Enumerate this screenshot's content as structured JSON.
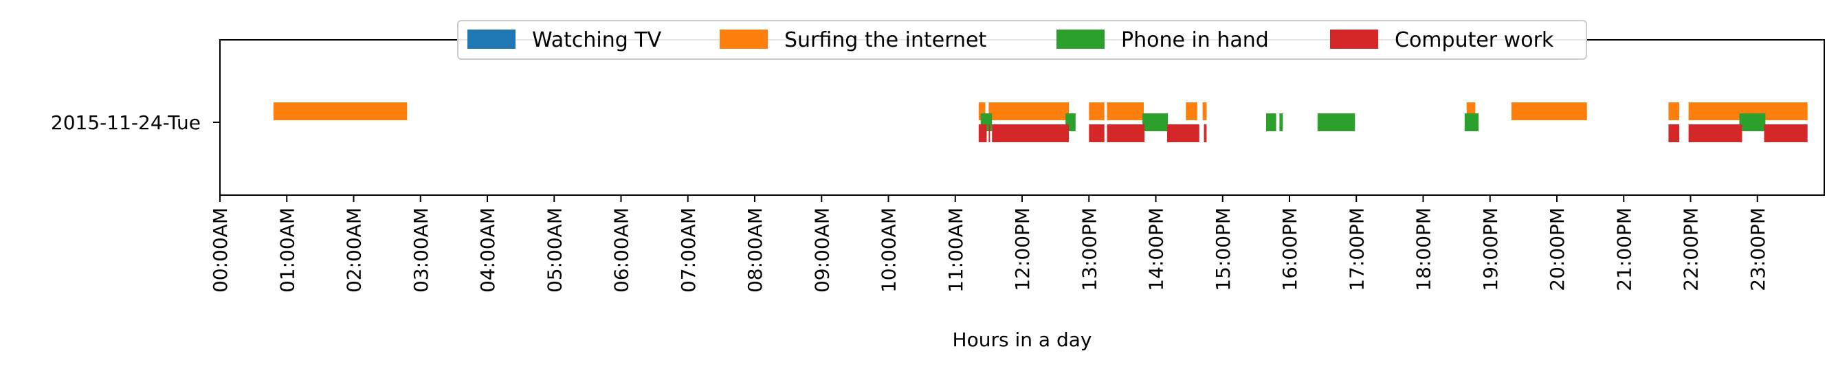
{
  "chart_data": {
    "type": "timeline",
    "title": "",
    "xlabel": "Hours in a day",
    "ylabel": "",
    "xlim": [
      0,
      24
    ],
    "x_ticks": [
      {
        "value": 0,
        "label": "00:00AM"
      },
      {
        "value": 1,
        "label": "01:00AM"
      },
      {
        "value": 2,
        "label": "02:00AM"
      },
      {
        "value": 3,
        "label": "03:00AM"
      },
      {
        "value": 4,
        "label": "04:00AM"
      },
      {
        "value": 5,
        "label": "05:00AM"
      },
      {
        "value": 6,
        "label": "06:00AM"
      },
      {
        "value": 7,
        "label": "07:00AM"
      },
      {
        "value": 8,
        "label": "08:00AM"
      },
      {
        "value": 9,
        "label": "09:00AM"
      },
      {
        "value": 10,
        "label": "10:00AM"
      },
      {
        "value": 11,
        "label": "11:00AM"
      },
      {
        "value": 12,
        "label": "12:00PM"
      },
      {
        "value": 13,
        "label": "13:00PM"
      },
      {
        "value": 14,
        "label": "14:00PM"
      },
      {
        "value": 15,
        "label": "15:00PM"
      },
      {
        "value": 16,
        "label": "16:00PM"
      },
      {
        "value": 17,
        "label": "17:00PM"
      },
      {
        "value": 18,
        "label": "18:00PM"
      },
      {
        "value": 19,
        "label": "19:00PM"
      },
      {
        "value": 20,
        "label": "20:00PM"
      },
      {
        "value": 21,
        "label": "21:00PM"
      },
      {
        "value": 22,
        "label": "22:00PM"
      },
      {
        "value": 23,
        "label": "23:00PM"
      }
    ],
    "categories": [
      "2015-11-24-Tue"
    ],
    "legend_position": "top-center",
    "grid": false,
    "series": [
      {
        "name": "Watching TV",
        "color": "#1f77b4",
        "lane_offset": 0,
        "intervals": []
      },
      {
        "name": "Surfing the internet",
        "color": "#ff7f0e",
        "lane_offset": -0.1,
        "intervals": [
          [
            0.8,
            2.8
          ],
          [
            11.35,
            11.45
          ],
          [
            11.5,
            12.7
          ],
          [
            13.0,
            13.23
          ],
          [
            13.27,
            13.82
          ],
          [
            14.45,
            14.62
          ],
          [
            14.7,
            14.76
          ],
          [
            18.65,
            18.78
          ],
          [
            19.32,
            20.45
          ],
          [
            21.67,
            21.83
          ],
          [
            21.97,
            23.75
          ]
        ]
      },
      {
        "name": "Phone in hand",
        "color": "#2ca02c",
        "lane_offset": 0,
        "intervals": [
          [
            11.38,
            11.55
          ],
          [
            12.65,
            12.8
          ],
          [
            13.8,
            14.18
          ],
          [
            15.65,
            15.8
          ],
          [
            15.85,
            15.9
          ],
          [
            16.42,
            16.98
          ],
          [
            18.62,
            18.83
          ],
          [
            22.73,
            23.12
          ]
        ]
      },
      {
        "name": "Computer work",
        "color": "#d62728",
        "lane_offset": 0.1,
        "intervals": [
          [
            11.35,
            11.47
          ],
          [
            11.5,
            11.52
          ],
          [
            11.55,
            12.7
          ],
          [
            13.0,
            13.23
          ],
          [
            13.27,
            13.83
          ],
          [
            14.17,
            14.65
          ],
          [
            14.72,
            14.76
          ],
          [
            21.67,
            21.83
          ],
          [
            21.97,
            22.77
          ],
          [
            23.1,
            23.75
          ]
        ]
      }
    ]
  }
}
